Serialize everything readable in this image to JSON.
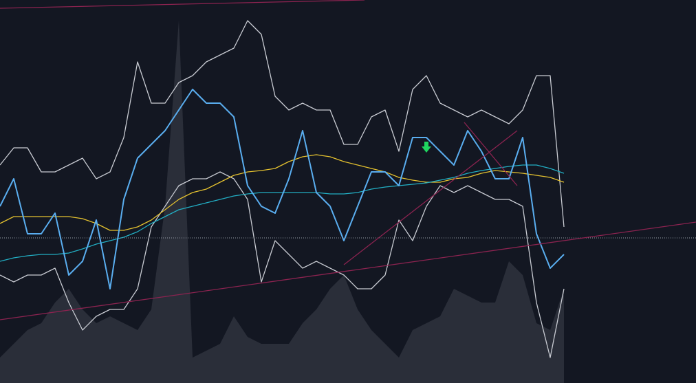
{
  "chart_data": {
    "type": "line",
    "categories": [
      null,
      null,
      null,
      null,
      null,
      null,
      null,
      null,
      null,
      null,
      null,
      null,
      null,
      null,
      null,
      null,
      null,
      null,
      null,
      null,
      null,
      null,
      null,
      null,
      null,
      null,
      null,
      null,
      null,
      null,
      null,
      null,
      null,
      null,
      null,
      null,
      null,
      null,
      null,
      null,
      null,
      null
    ],
    "ylim": [
      0,
      557
    ],
    "series": [
      {
        "color": "#2a2e39",
        "area": true,
        "values": [
          37,
          57,
          77,
          87,
          117,
          137,
          107,
          87,
          97,
          87,
          77,
          107,
          257,
          527,
          37,
          47,
          57,
          97,
          67,
          57,
          57,
          57,
          87,
          107,
          137,
          157,
          107,
          77,
          57,
          37,
          77,
          87,
          97,
          137,
          127,
          117,
          117,
          177,
          157,
          87,
          77,
          137
        ]
      },
      {
        "color": "#c9ccd3",
        "values": [
          317,
          342,
          342,
          307,
          307,
          317,
          327,
          297,
          307,
          357,
          467,
          407,
          407,
          437,
          447,
          467,
          477,
          487,
          527,
          507,
          417,
          397,
          407,
          397,
          397,
          347,
          347,
          387,
          397,
          337,
          427,
          447,
          407,
          397,
          387,
          397,
          387,
          377,
          397,
          447,
          447,
          227
        ]
      },
      {
        "color": "#c9ccd3",
        "values": [
          157,
          147,
          157,
          157,
          167,
          117,
          77,
          97,
          107,
          107,
          137,
          227,
          257,
          287,
          297,
          297,
          307,
          297,
          267,
          147,
          207,
          187,
          167,
          177,
          167,
          157,
          137,
          137,
          157,
          237,
          207,
          257,
          287,
          277,
          287,
          277,
          267,
          267,
          257,
          117,
          37,
          137
        ]
      },
      {
        "color": "#e5c22f",
        "values": [
          232,
          242,
          242,
          242,
          242,
          242,
          239,
          232,
          222,
          222,
          227,
          237,
          252,
          267,
          277,
          282,
          292,
          302,
          307,
          309,
          312,
          322,
          329,
          332,
          329,
          322,
          317,
          312,
          307,
          299,
          295,
          292,
          292,
          297,
          299,
          305,
          309,
          307,
          305,
          302,
          299,
          292
        ]
      },
      {
        "color": "#22afc4",
        "values": [
          177,
          182,
          185,
          187,
          187,
          189,
          195,
          202,
          207,
          212,
          220,
          232,
          242,
          252,
          257,
          262,
          267,
          272,
          275,
          277,
          277,
          277,
          277,
          277,
          275,
          275,
          277,
          282,
          285,
          287,
          289,
          291,
          295,
          299,
          305,
          309,
          312,
          315,
          317,
          317,
          312,
          305
        ]
      },
      {
        "color": "#5aaef0",
        "values": [
          257,
          297,
          217,
          217,
          247,
          157,
          177,
          237,
          137,
          267,
          327,
          347,
          367,
          397,
          427,
          407,
          407,
          387,
          287,
          257,
          247,
          297,
          367,
          277,
          257,
          207,
          257,
          307,
          307,
          287,
          357,
          357,
          337,
          317,
          367,
          337,
          297,
          297,
          357,
          217,
          167,
          187
        ]
      }
    ]
  }
}
